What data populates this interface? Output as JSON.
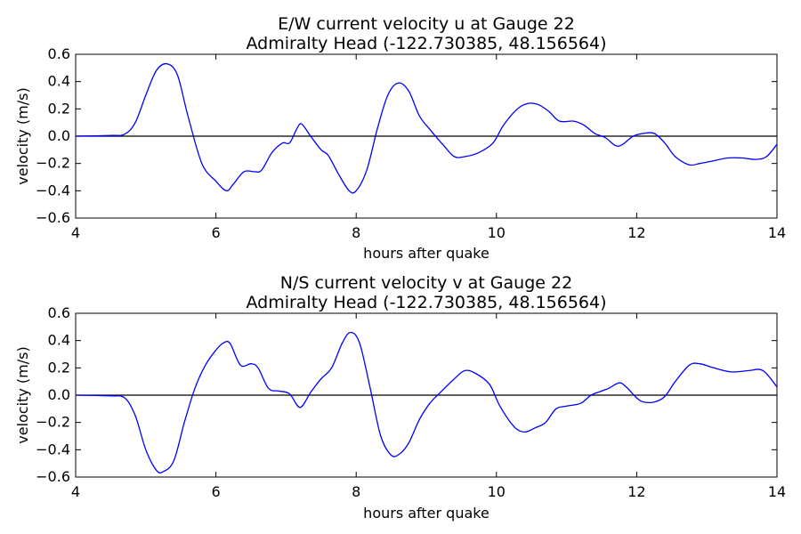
{
  "chart_data": [
    {
      "type": "line",
      "title": "E/W current velocity u at Gauge 22",
      "subtitle": "Admiralty Head  (-122.730385, 48.156564)",
      "xlabel": "hours after quake",
      "ylabel": "velocity (m/s)",
      "xlim": [
        4,
        14
      ],
      "ylim": [
        -0.6,
        0.6
      ],
      "xticks": [
        "4",
        "6",
        "8",
        "10",
        "12",
        "14"
      ],
      "yticks": [
        "0.6",
        "0.4",
        "0.2",
        "0.0",
        "−0.2",
        "−0.4",
        "−0.6"
      ],
      "grid": false,
      "reference_line": 0.0,
      "series_color": "#0000ff",
      "series": [
        {
          "x": [
            4.0,
            4.5,
            4.7,
            4.85,
            5.0,
            5.15,
            5.3,
            5.45,
            5.6,
            5.8,
            6.0,
            6.15,
            6.25,
            6.4,
            6.55,
            6.65,
            6.8,
            6.95,
            7.05,
            7.15,
            7.22,
            7.35,
            7.5,
            7.6,
            7.75,
            7.9,
            8.0,
            8.15,
            8.3,
            8.45,
            8.6,
            8.75,
            8.9,
            9.05,
            9.25,
            9.4,
            9.55,
            9.75,
            9.95,
            10.1,
            10.3,
            10.45,
            10.6,
            10.75,
            10.9,
            11.1,
            11.25,
            11.4,
            11.55,
            11.7,
            11.8,
            11.95,
            12.1,
            12.25,
            12.4,
            12.55,
            12.75,
            12.9,
            13.1,
            13.3,
            13.5,
            13.7,
            13.85,
            14.0
          ],
          "y": [
            0.0,
            0.005,
            0.015,
            0.1,
            0.3,
            0.48,
            0.53,
            0.45,
            0.15,
            -0.2,
            -0.33,
            -0.4,
            -0.35,
            -0.26,
            -0.26,
            -0.25,
            -0.12,
            -0.05,
            -0.05,
            0.05,
            0.09,
            0.0,
            -0.1,
            -0.14,
            -0.28,
            -0.4,
            -0.4,
            -0.25,
            0.05,
            0.3,
            0.39,
            0.33,
            0.15,
            0.05,
            -0.07,
            -0.15,
            -0.15,
            -0.12,
            -0.05,
            0.08,
            0.2,
            0.24,
            0.23,
            0.18,
            0.11,
            0.11,
            0.08,
            0.02,
            -0.01,
            -0.07,
            -0.06,
            0.0,
            0.02,
            0.02,
            -0.05,
            -0.15,
            -0.21,
            -0.2,
            -0.18,
            -0.16,
            -0.16,
            -0.17,
            -0.15,
            -0.06
          ]
        }
      ]
    },
    {
      "type": "line",
      "title": "N/S current velocity v at Gauge 22",
      "subtitle": "Admiralty Head  (-122.730385, 48.156564)",
      "xlabel": "hours after quake",
      "ylabel": "velocity (m/s)",
      "xlim": [
        4,
        14
      ],
      "ylim": [
        -0.6,
        0.6
      ],
      "xticks": [
        "4",
        "6",
        "8",
        "10",
        "12",
        "14"
      ],
      "yticks": [
        "0.6",
        "0.4",
        "0.2",
        "0.0",
        "−0.2",
        "−0.4",
        "−0.6"
      ],
      "grid": false,
      "reference_line": 0.0,
      "series_color": "#0000ff",
      "series": [
        {
          "x": [
            4.0,
            4.5,
            4.7,
            4.85,
            5.0,
            5.15,
            5.25,
            5.4,
            5.55,
            5.7,
            5.85,
            6.0,
            6.1,
            6.2,
            6.35,
            6.5,
            6.6,
            6.75,
            6.9,
            7.05,
            7.2,
            7.35,
            7.5,
            7.65,
            7.8,
            7.92,
            8.05,
            8.2,
            8.35,
            8.5,
            8.62,
            8.75,
            8.9,
            9.05,
            9.2,
            9.4,
            9.55,
            9.7,
            9.9,
            10.05,
            10.25,
            10.4,
            10.55,
            10.7,
            10.85,
            11.0,
            11.2,
            11.35,
            11.5,
            11.6,
            11.75,
            11.85,
            12.0,
            12.1,
            12.25,
            12.4,
            12.55,
            12.75,
            12.9,
            13.1,
            13.35,
            13.6,
            13.8,
            14.0
          ],
          "y": [
            0.0,
            -0.005,
            -0.02,
            -0.15,
            -0.4,
            -0.55,
            -0.56,
            -0.48,
            -0.2,
            0.05,
            0.22,
            0.33,
            0.38,
            0.38,
            0.22,
            0.23,
            0.2,
            0.05,
            0.03,
            0.01,
            -0.09,
            0.02,
            0.12,
            0.2,
            0.38,
            0.46,
            0.38,
            0.05,
            -0.3,
            -0.44,
            -0.43,
            -0.35,
            -0.18,
            -0.06,
            0.02,
            0.12,
            0.18,
            0.16,
            0.08,
            -0.08,
            -0.23,
            -0.27,
            -0.24,
            -0.2,
            -0.1,
            -0.08,
            -0.06,
            0.0,
            0.03,
            0.05,
            0.09,
            0.06,
            -0.02,
            -0.05,
            -0.05,
            -0.01,
            0.1,
            0.22,
            0.23,
            0.2,
            0.17,
            0.18,
            0.18,
            0.06
          ]
        }
      ]
    }
  ]
}
